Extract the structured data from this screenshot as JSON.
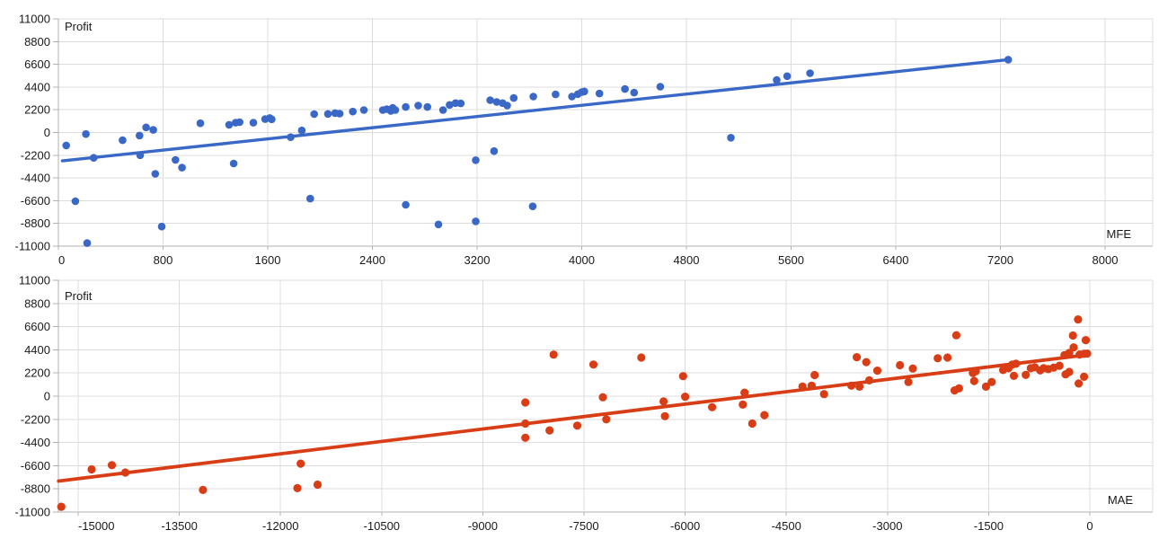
{
  "page": {
    "background": "#ffffff"
  },
  "chart_data": [
    {
      "type": "scatter",
      "title": "Profit",
      "xlabel": "MFE",
      "series_color": "#3a68c7",
      "grid": true,
      "x_ticks": [
        0,
        800,
        1600,
        2400,
        3200,
        4000,
        4800,
        5600,
        6400,
        7200,
        8000
      ],
      "y_ticks": [
        11000,
        8800,
        6600,
        4400,
        2200,
        0,
        -2200,
        -4400,
        -6600,
        -8800,
        -11000
      ],
      "xlim": [
        0,
        8360
      ],
      "ylim": [
        -11000,
        11000
      ],
      "points": [
        [
          60,
          -1250
        ],
        [
          130,
          -6650
        ],
        [
          210,
          -150
        ],
        [
          220,
          -10700
        ],
        [
          270,
          -2450
        ],
        [
          490,
          -750
        ],
        [
          620,
          -300
        ],
        [
          625,
          -2200
        ],
        [
          670,
          500
        ],
        [
          725,
          250
        ],
        [
          740,
          -4000
        ],
        [
          790,
          -9100
        ],
        [
          895,
          -2650
        ],
        [
          945,
          -3400
        ],
        [
          1085,
          900
        ],
        [
          1305,
          750
        ],
        [
          1340,
          -3000
        ],
        [
          1355,
          950
        ],
        [
          1385,
          1000
        ],
        [
          1490,
          950
        ],
        [
          1580,
          1300
        ],
        [
          1615,
          1400
        ],
        [
          1630,
          1280
        ],
        [
          1775,
          -450
        ],
        [
          1860,
          200
        ],
        [
          1925,
          -6400
        ],
        [
          1955,
          1780
        ],
        [
          2060,
          1800
        ],
        [
          2115,
          1880
        ],
        [
          2150,
          1830
        ],
        [
          2250,
          2030
        ],
        [
          2335,
          2175
        ],
        [
          2480,
          2175
        ],
        [
          2510,
          2260
        ],
        [
          2540,
          2090
        ],
        [
          2555,
          2380
        ],
        [
          2575,
          2175
        ],
        [
          2655,
          2470
        ],
        [
          2655,
          -7000
        ],
        [
          2750,
          2610
        ],
        [
          2820,
          2470
        ],
        [
          2905,
          -8900
        ],
        [
          2940,
          2175
        ],
        [
          2990,
          2670
        ],
        [
          3035,
          2845
        ],
        [
          3075,
          2820
        ],
        [
          3190,
          -8600
        ],
        [
          3190,
          -2680
        ],
        [
          3300,
          3130
        ],
        [
          3330,
          -1800
        ],
        [
          3350,
          2960
        ],
        [
          3395,
          2845
        ],
        [
          3430,
          2610
        ],
        [
          3480,
          3340
        ],
        [
          3625,
          -7150
        ],
        [
          3630,
          3480
        ],
        [
          3800,
          3690
        ],
        [
          3925,
          3480
        ],
        [
          3970,
          3715
        ],
        [
          4000,
          3915
        ],
        [
          4020,
          3975
        ],
        [
          4135,
          3775
        ],
        [
          4330,
          4210
        ],
        [
          4400,
          3860
        ],
        [
          4600,
          4435
        ],
        [
          5140,
          -500
        ],
        [
          5490,
          5080
        ],
        [
          5570,
          5455
        ],
        [
          5745,
          5740
        ],
        [
          7260,
          7050
        ]
      ],
      "trendline": {
        "x1": 30,
        "y1": -2750,
        "x2": 7260,
        "y2": 7050
      }
    },
    {
      "type": "scatter",
      "title": "Profit",
      "xlabel": "MAE",
      "series_color": "#d93d16",
      "grid": true,
      "x_ticks": [
        -15000,
        -13500,
        -12000,
        -10500,
        -9000,
        -7500,
        -6000,
        -4500,
        -3000,
        -1500,
        0
      ],
      "y_ticks": [
        11000,
        8800,
        6600,
        4400,
        2200,
        0,
        -2200,
        -4400,
        -6600,
        -8800,
        -11000
      ],
      "xlim": [
        -15290,
        930
      ],
      "ylim": [
        -11000,
        11000
      ],
      "points": [
        [
          -15250,
          -10500
        ],
        [
          -14800,
          -6950
        ],
        [
          -14500,
          -6550
        ],
        [
          -14300,
          -7250
        ],
        [
          -13150,
          -8900
        ],
        [
          -11750,
          -8730
        ],
        [
          -11700,
          -6400
        ],
        [
          -11450,
          -8400
        ],
        [
          -8370,
          -600
        ],
        [
          -8370,
          -2600
        ],
        [
          -8370,
          -3950
        ],
        [
          -8010,
          -3250
        ],
        [
          -7950,
          3950
        ],
        [
          -7600,
          -2800
        ],
        [
          -7360,
          3000
        ],
        [
          -7220,
          -100
        ],
        [
          -7170,
          -2200
        ],
        [
          -6650,
          3670
        ],
        [
          -6320,
          -500
        ],
        [
          -6300,
          -1900
        ],
        [
          -6030,
          1900
        ],
        [
          -6000,
          -50
        ],
        [
          -5600,
          -1050
        ],
        [
          -5145,
          -800
        ],
        [
          -5120,
          330
        ],
        [
          -5005,
          -2600
        ],
        [
          -4825,
          -1800
        ],
        [
          -4260,
          900
        ],
        [
          -4125,
          1000
        ],
        [
          -4080,
          2000
        ],
        [
          -3940,
          200
        ],
        [
          -3535,
          1000
        ],
        [
          -3455,
          3700
        ],
        [
          -3415,
          900
        ],
        [
          -3315,
          3230
        ],
        [
          -3270,
          1500
        ],
        [
          -3150,
          2420
        ],
        [
          -2815,
          2940
        ],
        [
          -2690,
          1350
        ],
        [
          -2625,
          2630
        ],
        [
          -2255,
          3600
        ],
        [
          -2110,
          3670
        ],
        [
          -2005,
          550
        ],
        [
          -1980,
          5780
        ],
        [
          -1940,
          740
        ],
        [
          -1735,
          2200
        ],
        [
          -1715,
          1440
        ],
        [
          -1690,
          2370
        ],
        [
          -1540,
          900
        ],
        [
          -1455,
          1350
        ],
        [
          -1285,
          2480
        ],
        [
          -1205,
          2650
        ],
        [
          -1150,
          3000
        ],
        [
          -1125,
          1930
        ],
        [
          -1095,
          3080
        ],
        [
          -950,
          2020
        ],
        [
          -875,
          2650
        ],
        [
          -815,
          2740
        ],
        [
          -735,
          2450
        ],
        [
          -685,
          2650
        ],
        [
          -615,
          2570
        ],
        [
          -535,
          2710
        ],
        [
          -450,
          2890
        ],
        [
          -375,
          3900
        ],
        [
          -360,
          2070
        ],
        [
          -305,
          4100
        ],
        [
          -305,
          2300
        ],
        [
          -250,
          5760
        ],
        [
          -240,
          4630
        ],
        [
          -175,
          7280
        ],
        [
          -165,
          1200
        ],
        [
          -150,
          3960
        ],
        [
          -85,
          4020
        ],
        [
          -85,
          1840
        ],
        [
          -60,
          5320
        ],
        [
          -40,
          4040
        ]
      ],
      "trendline": {
        "x1": -15290,
        "y1": -8060,
        "x2": -10,
        "y2": 3950
      }
    }
  ],
  "colors": {
    "grid": "#dcdcdc",
    "axis": "#b0b0b0",
    "tick_text": "#1a1a1a"
  }
}
